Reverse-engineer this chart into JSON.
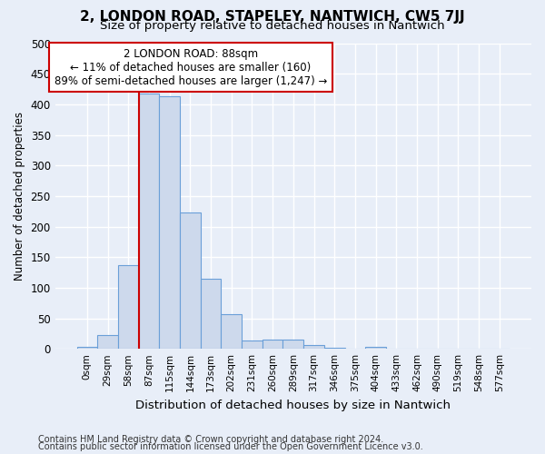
{
  "title": "2, LONDON ROAD, STAPELEY, NANTWICH, CW5 7JJ",
  "subtitle": "Size of property relative to detached houses in Nantwich",
  "xlabel": "Distribution of detached houses by size in Nantwich",
  "ylabel": "Number of detached properties",
  "bar_color": "#cdd9ec",
  "bar_edge_color": "#6a9fd8",
  "background_color": "#e8eef8",
  "grid_color": "#ffffff",
  "categories": [
    "0sqm",
    "29sqm",
    "58sqm",
    "87sqm",
    "115sqm",
    "144sqm",
    "173sqm",
    "202sqm",
    "231sqm",
    "260sqm",
    "289sqm",
    "317sqm",
    "346sqm",
    "375sqm",
    "404sqm",
    "433sqm",
    "462sqm",
    "490sqm",
    "519sqm",
    "548sqm",
    "577sqm"
  ],
  "values": [
    3,
    22,
    137,
    417,
    413,
    223,
    114,
    57,
    14,
    15,
    15,
    6,
    2,
    0,
    3,
    0,
    0,
    0,
    0,
    0,
    1
  ],
  "property_bin_index": 3,
  "annotation_title": "2 LONDON ROAD: 88sqm",
  "annotation_line1": "← 11% of detached houses are smaller (160)",
  "annotation_line2": "89% of semi-detached houses are larger (1,247) →",
  "vline_color": "#cc0000",
  "annotation_box_color": "#ffffff",
  "annotation_box_edge": "#cc0000",
  "footnote1": "Contains HM Land Registry data © Crown copyright and database right 2024.",
  "footnote2": "Contains public sector information licensed under the Open Government Licence v3.0.",
  "ylim": [
    0,
    500
  ],
  "yticks": [
    0,
    50,
    100,
    150,
    200,
    250,
    300,
    350,
    400,
    450,
    500
  ]
}
